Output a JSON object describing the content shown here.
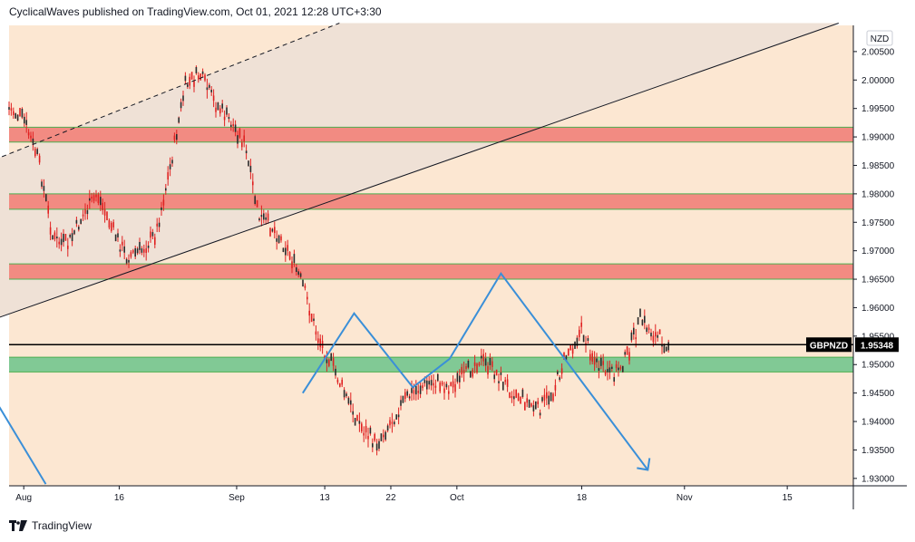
{
  "header": {
    "text": "CyclicalWaves published on TradingView.com, Oct 01, 2021 12:28 UTC+3:30"
  },
  "footer": {
    "brand": "TradingView"
  },
  "chart_data": {
    "type": "candlestick",
    "symbol": "GBPNZD",
    "currency_badge": "NZD",
    "last_price": 1.95348,
    "last_price_label": "1.95348",
    "x_axis": {
      "labels": [
        "Aug",
        "16",
        "Sep",
        "13",
        "22",
        "Oct",
        "18",
        "Nov",
        "15"
      ],
      "domain": [
        "2021-08-01",
        "2021-11-24"
      ]
    },
    "y_axis": {
      "labels": [
        "1.93000",
        "1.93500",
        "1.94000",
        "1.94500",
        "1.95000",
        "1.95500",
        "1.96000",
        "1.96500",
        "1.97000",
        "1.97500",
        "1.98000",
        "1.98500",
        "1.99000",
        "1.99500",
        "2.00000",
        "2.00500"
      ],
      "ylim": [
        1.9287,
        2.0096
      ]
    },
    "zones": [
      {
        "name": "resistance-1",
        "from": 1.9891,
        "to": 1.9917,
        "color": "#f28b82"
      },
      {
        "name": "resistance-2",
        "from": 1.9773,
        "to": 1.98,
        "color": "#f28b82"
      },
      {
        "name": "resistance-3",
        "from": 1.965,
        "to": 1.9677,
        "color": "#f28b82"
      },
      {
        "name": "support",
        "from": 1.9487,
        "to": 1.9513,
        "color": "#81c995"
      }
    ],
    "price_path": [
      [
        "2021-08-01",
        1.995
      ],
      [
        "2021-08-03",
        1.993
      ],
      [
        "2021-08-05",
        1.986
      ],
      [
        "2021-08-07",
        1.972
      ],
      [
        "2021-08-09",
        1.971
      ],
      [
        "2021-08-11",
        1.976
      ],
      [
        "2021-08-13",
        1.98
      ],
      [
        "2021-08-15",
        1.974
      ],
      [
        "2021-08-17",
        1.969
      ],
      [
        "2021-08-19",
        1.97
      ],
      [
        "2021-08-21",
        1.973
      ],
      [
        "2021-08-23",
        1.985
      ],
      [
        "2021-08-25",
        1.999
      ],
      [
        "2021-08-27",
        2.001
      ],
      [
        "2021-08-29",
        1.996
      ],
      [
        "2021-08-31",
        1.993
      ],
      [
        "2021-09-02",
        1.989
      ],
      [
        "2021-09-04",
        1.976
      ],
      [
        "2021-09-06",
        1.974
      ],
      [
        "2021-09-08",
        1.97
      ],
      [
        "2021-09-10",
        1.964
      ],
      [
        "2021-09-12",
        1.955
      ],
      [
        "2021-09-14",
        1.95
      ],
      [
        "2021-09-16",
        1.944
      ],
      [
        "2021-09-18",
        1.939
      ],
      [
        "2021-09-20",
        1.936
      ],
      [
        "2021-09-22",
        1.94
      ],
      [
        "2021-09-24",
        1.944
      ],
      [
        "2021-09-26",
        1.946
      ],
      [
        "2021-09-28",
        1.947
      ],
      [
        "2021-09-30",
        1.946
      ],
      [
        "2021-10-02",
        1.948
      ],
      [
        "2021-10-04",
        1.951
      ],
      [
        "2021-10-06",
        1.949
      ],
      [
        "2021-10-08",
        1.946
      ],
      [
        "2021-10-10",
        1.944
      ],
      [
        "2021-10-12",
        1.942
      ],
      [
        "2021-10-14",
        1.945
      ],
      [
        "2021-10-16",
        1.952
      ],
      [
        "2021-10-18",
        1.956
      ],
      [
        "2021-10-20",
        1.95
      ],
      [
        "2021-10-22",
        1.948
      ],
      [
        "2021-10-24",
        1.951
      ],
      [
        "2021-10-26",
        1.958
      ],
      [
        "2021-10-28",
        1.955
      ],
      [
        "2021-10-30",
        1.9535
      ]
    ],
    "annotations": {
      "trendline_solid": [
        [
          "2021-07-30",
          1.958
        ],
        [
          "2021-11-22",
          2.01
        ]
      ],
      "trendline_dashed": [
        [
          "2021-07-30",
          1.986
        ],
        [
          "2021-09-15",
          2.01
        ]
      ],
      "zigzag_projection": [
        [
          "2021-09-10",
          1.945
        ],
        [
          "2021-09-17",
          1.959
        ],
        [
          "2021-09-25",
          1.946
        ],
        [
          "2021-09-30",
          1.951
        ],
        [
          "2021-10-07",
          1.966
        ],
        [
          "2021-10-27",
          1.9315
        ]
      ],
      "left_ray": [
        [
          "2021-07-30",
          1.944
        ],
        [
          "2021-08-06",
          1.929
        ]
      ],
      "horizontal_line": 1.9535
    },
    "colors": {
      "background": "#fce7d2",
      "channel_fill": "#efe1d6",
      "candles": "#e02020",
      "projection": "#3a8fd8",
      "price_line": "#000000"
    }
  }
}
